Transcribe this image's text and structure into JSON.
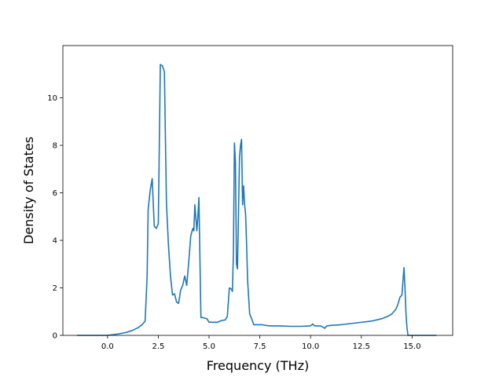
{
  "chart_data": {
    "type": "line",
    "title": "",
    "xlabel": "Frequency (THz)",
    "ylabel": "Density of States",
    "xlim": [
      -2.2,
      17.0
    ],
    "ylim": [
      0,
      12.2
    ],
    "xticks": [
      0.0,
      2.5,
      5.0,
      7.5,
      10.0,
      12.5,
      15.0
    ],
    "xtick_labels": [
      "0.0",
      "2.5",
      "5.0",
      "7.5",
      "10.0",
      "12.5",
      "15.0"
    ],
    "yticks": [
      0,
      2,
      4,
      6,
      8,
      10
    ],
    "ytick_labels": [
      "0",
      "2",
      "4",
      "6",
      "8",
      "10"
    ],
    "grid": false,
    "legend": "none",
    "color": "#1f77b4",
    "series": [
      {
        "x": [
          -1.5,
          -1.0,
          -0.5,
          0.0,
          0.3,
          0.6,
          0.9,
          1.2,
          1.5,
          1.7,
          1.85,
          1.95,
          2.0,
          2.1,
          2.2,
          2.3,
          2.4,
          2.5,
          2.55,
          2.6,
          2.7,
          2.8,
          2.9,
          3.0,
          3.1,
          3.2,
          3.3,
          3.4,
          3.5,
          3.6,
          3.7,
          3.8,
          3.9,
          4.0,
          4.1,
          4.2,
          4.25,
          4.3,
          4.4,
          4.45,
          4.5,
          4.6,
          4.7,
          4.8,
          4.9,
          5.0,
          5.2,
          5.4,
          5.6,
          5.8,
          5.9,
          6.0,
          6.1,
          6.15,
          6.2,
          6.25,
          6.3,
          6.35,
          6.4,
          6.5,
          6.55,
          6.6,
          6.65,
          6.7,
          6.75,
          6.8,
          6.85,
          6.9,
          7.0,
          7.1,
          7.2,
          7.4,
          7.6,
          7.8,
          8.0,
          8.5,
          9.0,
          9.5,
          10.0,
          10.1,
          10.2,
          10.5,
          10.7,
          10.8,
          11.0,
          11.5,
          12.0,
          12.5,
          13.0,
          13.5,
          13.8,
          14.0,
          14.2,
          14.3,
          14.4,
          14.5,
          14.6,
          14.65,
          14.7,
          14.75,
          14.8,
          14.85,
          15.0,
          16.0,
          16.2
        ],
        "y": [
          0.0,
          0.0,
          0.0,
          0.0,
          0.03,
          0.07,
          0.12,
          0.2,
          0.32,
          0.45,
          0.6,
          2.5,
          5.3,
          6.1,
          6.6,
          4.6,
          4.5,
          4.7,
          8.0,
          11.4,
          11.35,
          11.1,
          5.6,
          3.8,
          2.5,
          1.7,
          1.75,
          1.4,
          1.35,
          1.9,
          2.1,
          2.5,
          2.1,
          3.1,
          4.2,
          4.5,
          4.4,
          5.5,
          4.4,
          5.0,
          5.8,
          0.75,
          0.75,
          0.72,
          0.7,
          0.55,
          0.55,
          0.55,
          0.62,
          0.65,
          0.8,
          2.0,
          1.95,
          1.85,
          3.5,
          8.1,
          7.3,
          3.0,
          2.8,
          7.5,
          8.0,
          8.25,
          5.5,
          6.3,
          5.5,
          5.1,
          3.8,
          2.3,
          0.9,
          0.7,
          0.45,
          0.45,
          0.45,
          0.42,
          0.4,
          0.4,
          0.38,
          0.38,
          0.4,
          0.48,
          0.4,
          0.4,
          0.3,
          0.4,
          0.42,
          0.45,
          0.5,
          0.55,
          0.6,
          0.7,
          0.8,
          0.9,
          1.1,
          1.3,
          1.6,
          1.7,
          2.85,
          2.0,
          0.9,
          0.3,
          0.0,
          0.0,
          0.0,
          0.0,
          0.0
        ]
      }
    ]
  }
}
